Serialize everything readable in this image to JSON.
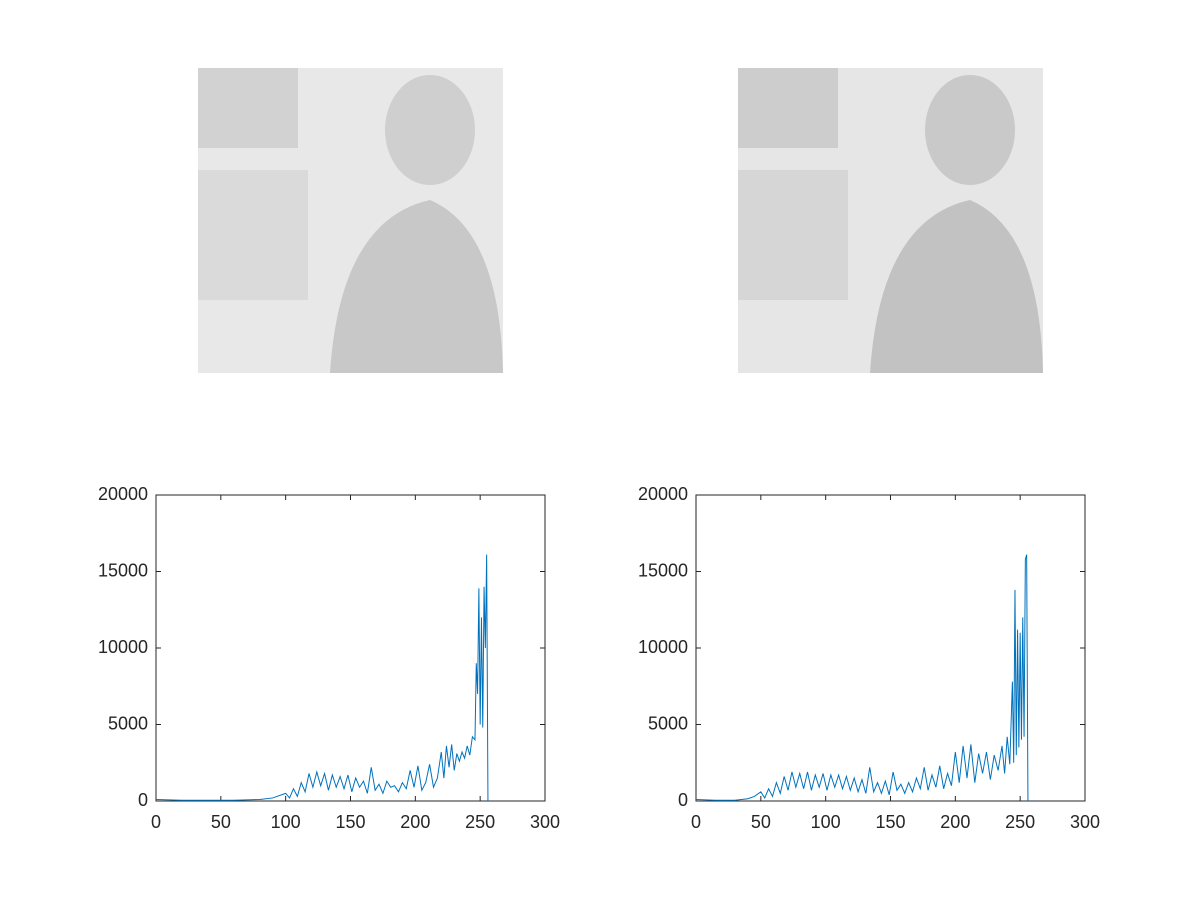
{
  "chart_data": [
    {
      "type": "line",
      "color": "#0072bd",
      "xlim": [
        0,
        300
      ],
      "ylim": [
        0,
        20000
      ],
      "xticks": [
        0,
        50,
        100,
        150,
        200,
        250,
        300
      ],
      "yticks": [
        0,
        5000,
        10000,
        15000,
        20000
      ],
      "x": [
        0,
        20,
        40,
        60,
        80,
        90,
        100,
        103,
        106,
        109,
        112,
        115,
        118,
        121,
        124,
        127,
        130,
        133,
        136,
        139,
        142,
        145,
        148,
        151,
        154,
        157,
        160,
        163,
        166,
        169,
        172,
        175,
        178,
        181,
        184,
        187,
        190,
        193,
        196,
        199,
        202,
        205,
        208,
        211,
        214,
        217,
        220,
        222,
        224,
        226,
        228,
        230,
        232,
        234,
        236,
        238,
        240,
        242,
        244,
        246,
        247,
        248,
        249,
        250,
        251,
        252,
        253,
        254,
        255,
        256
      ],
      "values": [
        100,
        50,
        50,
        50,
        100,
        200,
        500,
        200,
        800,
        300,
        1200,
        600,
        1800,
        900,
        1900,
        1000,
        1800,
        700,
        1700,
        900,
        1600,
        800,
        1700,
        600,
        1500,
        900,
        1300,
        500,
        2200,
        700,
        1100,
        500,
        1300,
        900,
        1000,
        600,
        1200,
        800,
        2000,
        900,
        2300,
        700,
        1200,
        2400,
        900,
        1500,
        3200,
        1500,
        3600,
        2200,
        3700,
        2000,
        3100,
        2600,
        3200,
        2800,
        3600,
        3000,
        4200,
        4000,
        9000,
        7000,
        13900,
        5000,
        12000,
        4800,
        14000,
        10000,
        16100,
        0
      ]
    },
    {
      "type": "line",
      "color": "#0072bd",
      "xlim": [
        0,
        300
      ],
      "ylim": [
        0,
        20000
      ],
      "xticks": [
        0,
        50,
        100,
        150,
        200,
        250,
        300
      ],
      "yticks": [
        0,
        5000,
        10000,
        15000,
        20000
      ],
      "x": [
        0,
        15,
        30,
        40,
        45,
        50,
        53,
        56,
        59,
        62,
        65,
        68,
        71,
        74,
        77,
        80,
        83,
        86,
        89,
        92,
        95,
        98,
        101,
        104,
        107,
        110,
        113,
        116,
        119,
        122,
        125,
        128,
        131,
        134,
        137,
        140,
        143,
        146,
        149,
        152,
        155,
        158,
        161,
        164,
        167,
        170,
        173,
        176,
        179,
        182,
        185,
        188,
        191,
        194,
        197,
        200,
        203,
        206,
        209,
        212,
        215,
        218,
        221,
        224,
        227,
        230,
        233,
        236,
        238,
        240,
        242,
        244,
        245,
        246,
        247,
        248,
        249,
        250,
        251,
        252,
        253,
        254,
        255,
        256
      ],
      "values": [
        100,
        50,
        50,
        150,
        300,
        600,
        200,
        800,
        300,
        1200,
        500,
        1600,
        700,
        1900,
        900,
        1800,
        800,
        1900,
        700,
        1700,
        900,
        1800,
        700,
        1700,
        900,
        1700,
        800,
        1600,
        700,
        1500,
        600,
        1400,
        500,
        2200,
        600,
        1200,
        500,
        1300,
        400,
        1900,
        700,
        1100,
        500,
        1200,
        600,
        1500,
        800,
        2200,
        700,
        1700,
        900,
        2300,
        800,
        1800,
        1000,
        3200,
        1200,
        3600,
        1500,
        3700,
        1200,
        3100,
        1800,
        3200,
        1400,
        3000,
        2000,
        3600,
        1800,
        4200,
        2400,
        7800,
        2500,
        13800,
        3000,
        11200,
        3500,
        11000,
        4000,
        12000,
        4200,
        15800,
        16100,
        0
      ]
    }
  ]
}
